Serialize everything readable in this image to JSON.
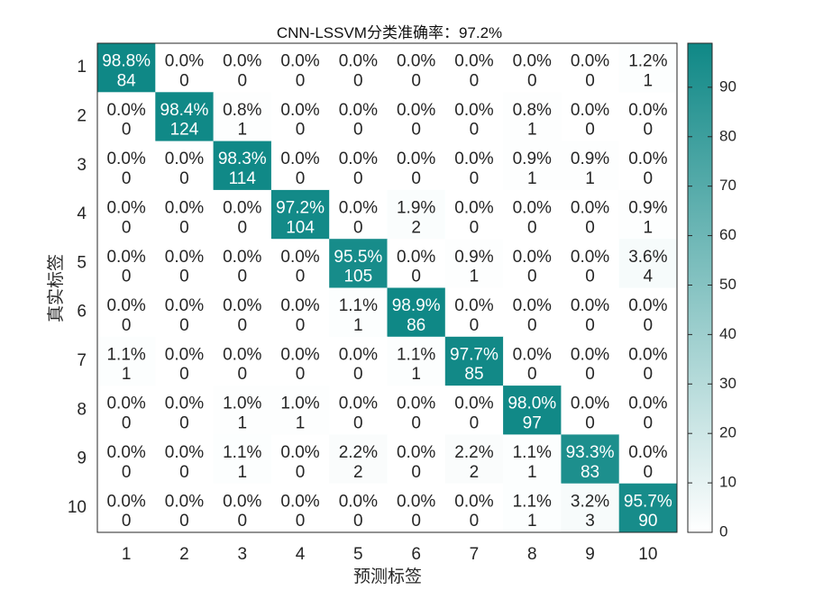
{
  "chart_data": {
    "type": "heatmap",
    "title": "CNN-LSSVM分类准确率：97.2%",
    "xlabel": "预测标签",
    "ylabel": "真实标签",
    "x_tick_labels": [
      "1",
      "2",
      "3",
      "4",
      "5",
      "6",
      "7",
      "8",
      "9",
      "10"
    ],
    "y_tick_labels": [
      "1",
      "2",
      "3",
      "4",
      "5",
      "6",
      "7",
      "8",
      "9",
      "10"
    ],
    "counts": [
      [
        84,
        0,
        0,
        0,
        0,
        0,
        0,
        0,
        0,
        1
      ],
      [
        0,
        124,
        1,
        0,
        0,
        0,
        0,
        1,
        0,
        0
      ],
      [
        0,
        0,
        114,
        0,
        0,
        0,
        0,
        1,
        1,
        0
      ],
      [
        0,
        0,
        0,
        104,
        0,
        2,
        0,
        0,
        0,
        1
      ],
      [
        0,
        0,
        0,
        0,
        105,
        0,
        1,
        0,
        0,
        4
      ],
      [
        0,
        0,
        0,
        0,
        1,
        86,
        0,
        0,
        0,
        0
      ],
      [
        1,
        0,
        0,
        0,
        0,
        1,
        85,
        0,
        0,
        0
      ],
      [
        0,
        0,
        1,
        1,
        0,
        0,
        0,
        97,
        0,
        0
      ],
      [
        0,
        0,
        1,
        0,
        2,
        0,
        2,
        1,
        83,
        0
      ],
      [
        0,
        0,
        0,
        0,
        0,
        0,
        0,
        1,
        3,
        90
      ]
    ],
    "percent_labels": [
      [
        "98.8%",
        "0.0%",
        "0.0%",
        "0.0%",
        "0.0%",
        "0.0%",
        "0.0%",
        "0.0%",
        "0.0%",
        "1.2%"
      ],
      [
        "0.0%",
        "98.4%",
        "0.8%",
        "0.0%",
        "0.0%",
        "0.0%",
        "0.0%",
        "0.8%",
        "0.0%",
        "0.0%"
      ],
      [
        "0.0%",
        "0.0%",
        "98.3%",
        "0.0%",
        "0.0%",
        "0.0%",
        "0.0%",
        "0.9%",
        "0.9%",
        "0.0%"
      ],
      [
        "0.0%",
        "0.0%",
        "0.0%",
        "97.2%",
        "0.0%",
        "1.9%",
        "0.0%",
        "0.0%",
        "0.0%",
        "0.9%"
      ],
      [
        "0.0%",
        "0.0%",
        "0.0%",
        "0.0%",
        "95.5%",
        "0.0%",
        "0.9%",
        "0.0%",
        "0.0%",
        "3.6%"
      ],
      [
        "0.0%",
        "0.0%",
        "0.0%",
        "0.0%",
        "1.1%",
        "98.9%",
        "0.0%",
        "0.0%",
        "0.0%",
        "0.0%"
      ],
      [
        "1.1%",
        "0.0%",
        "0.0%",
        "0.0%",
        "0.0%",
        "1.1%",
        "97.7%",
        "0.0%",
        "0.0%",
        "0.0%"
      ],
      [
        "0.0%",
        "0.0%",
        "1.0%",
        "1.0%",
        "0.0%",
        "0.0%",
        "0.0%",
        "98.0%",
        "0.0%",
        "0.0%"
      ],
      [
        "0.0%",
        "0.0%",
        "1.1%",
        "0.0%",
        "2.2%",
        "0.0%",
        "2.2%",
        "1.1%",
        "93.3%",
        "0.0%"
      ],
      [
        "0.0%",
        "0.0%",
        "0.0%",
        "0.0%",
        "0.0%",
        "0.0%",
        "0.0%",
        "1.1%",
        "3.2%",
        "95.7%"
      ]
    ],
    "percent_values": [
      [
        98.8,
        0,
        0,
        0,
        0,
        0,
        0,
        0,
        0,
        1.2
      ],
      [
        0,
        98.4,
        0.8,
        0,
        0,
        0,
        0,
        0.8,
        0,
        0
      ],
      [
        0,
        0,
        98.3,
        0,
        0,
        0,
        0,
        0.9,
        0.9,
        0
      ],
      [
        0,
        0,
        0,
        97.2,
        0,
        1.9,
        0,
        0,
        0,
        0.9
      ],
      [
        0,
        0,
        0,
        0,
        95.5,
        0,
        0.9,
        0,
        0,
        3.6
      ],
      [
        0,
        0,
        0,
        0,
        1.1,
        98.9,
        0,
        0,
        0,
        0
      ],
      [
        1.1,
        0,
        0,
        0,
        0,
        1.1,
        97.7,
        0,
        0,
        0
      ],
      [
        0,
        0,
        1.0,
        1.0,
        0,
        0,
        0,
        98.0,
        0,
        0
      ],
      [
        0,
        0,
        1.1,
        0,
        2.2,
        0,
        2.2,
        1.1,
        93.3,
        0
      ],
      [
        0,
        0,
        0,
        0,
        0,
        0,
        0,
        1.1,
        3.2,
        95.7
      ]
    ],
    "colorbar": {
      "range": [
        0,
        98.9
      ],
      "ticks": [
        "0",
        "10",
        "20",
        "30",
        "40",
        "50",
        "60",
        "70",
        "80",
        "90"
      ],
      "color_low": "#ffffff",
      "color_high": "#0f8886"
    }
  }
}
